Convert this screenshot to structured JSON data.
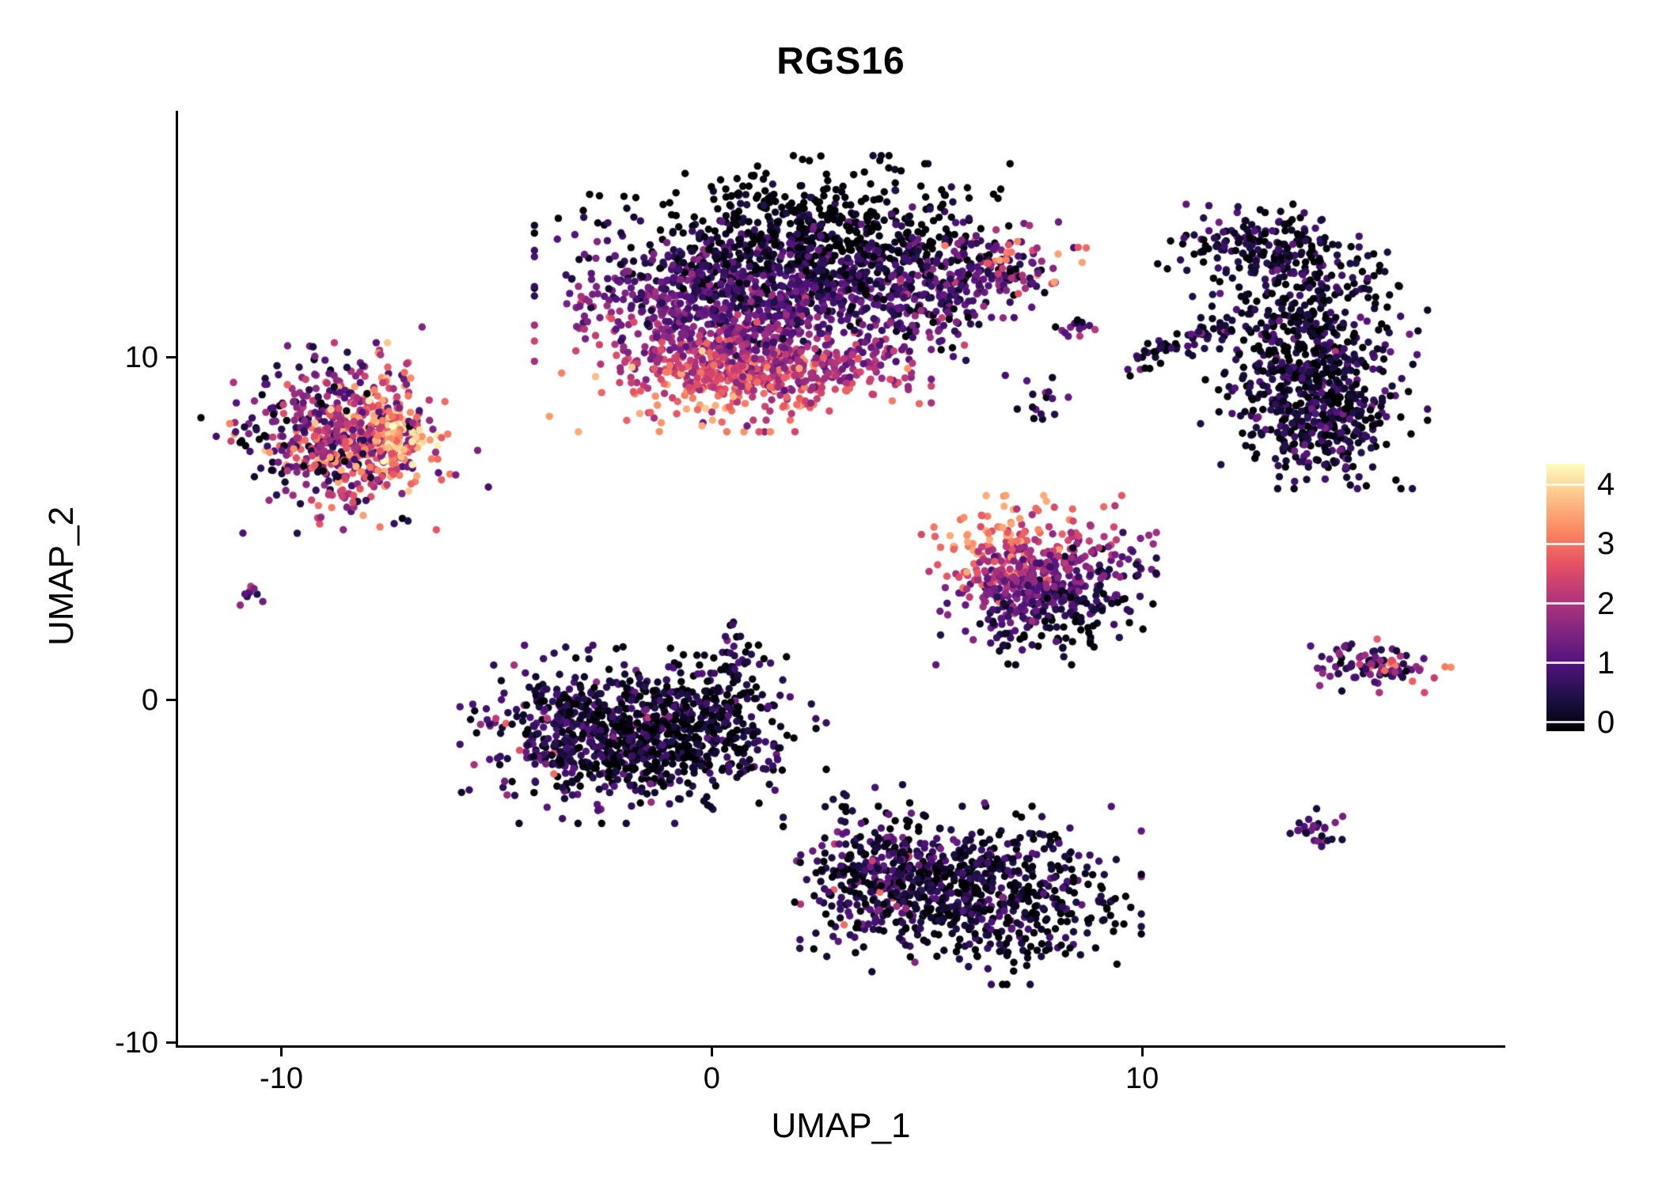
{
  "title": "RGS16",
  "colors": {
    "background": "#ffffff",
    "axis": "#000000",
    "text": "#000000"
  },
  "chart_data": {
    "type": "scatter",
    "subtype": "umap-feature-plot",
    "title": "RGS16",
    "xlabel": "UMAP_1",
    "ylabel": "UMAP_2",
    "xlim": [
      -12.4,
      18.4
    ],
    "ylim": [
      -10.1,
      17.2
    ],
    "grid": false,
    "seed": 1234,
    "point_radius_px": 4.7,
    "x_ticks": [
      {
        "value": -10,
        "label": "-10"
      },
      {
        "value": 0,
        "label": "0"
      },
      {
        "value": 10,
        "label": "10"
      }
    ],
    "y_ticks": [
      {
        "value": 10,
        "label": "10"
      },
      {
        "value": 0,
        "label": "0"
      },
      {
        "value": -10,
        "label": "-10"
      }
    ],
    "colormap": {
      "name": "magma",
      "value_range": [
        0,
        4.35
      ],
      "stops": [
        [
          0,
          "#000004"
        ],
        [
          0.125,
          "#1d1147"
        ],
        [
          0.25,
          "#51127c"
        ],
        [
          0.375,
          "#822681"
        ],
        [
          0.5,
          "#b63679"
        ],
        [
          0.625,
          "#e65164"
        ],
        [
          0.75,
          "#fb8861"
        ],
        [
          0.875,
          "#fec287"
        ],
        [
          1,
          "#fcfdbf"
        ]
      ]
    },
    "colorbar": {
      "position": "right",
      "domain": [
        -0.15,
        4.35
      ],
      "ticks": [
        {
          "value": 4,
          "label": "4"
        },
        {
          "value": 3,
          "label": "3"
        },
        {
          "value": 2,
          "label": "2"
        },
        {
          "value": 1,
          "label": "1"
        },
        {
          "value": 0,
          "label": "0"
        }
      ]
    },
    "clusters": [
      {
        "name": "main-body-upper-left",
        "center": [
          0.3,
          11.6
        ],
        "spread": [
          1.7,
          1.45
        ],
        "count": 1000,
        "value": {
          "base": 1.05,
          "gx": -0.12,
          "gy": -0.5,
          "noise": 0.55,
          "min": 0,
          "max": 3.6
        }
      },
      {
        "name": "main-body-upper-right",
        "center": [
          2.9,
          12.9
        ],
        "spread": [
          1.55,
          1.15
        ],
        "count": 800,
        "value": {
          "base": 0.55,
          "gx": -0.05,
          "gy": -0.35,
          "noise": 0.5,
          "min": 0,
          "max": 3.0
        }
      },
      {
        "name": "main-body-bright-rim",
        "center": [
          1.2,
          9.6
        ],
        "spread": [
          1.5,
          0.55
        ],
        "count": 450,
        "value": {
          "base": 2.4,
          "gx": -0.1,
          "gy": -0.4,
          "noise": 0.6,
          "min": 0.2,
          "max": 3.9
        }
      },
      {
        "name": "main-arm-inner",
        "center": [
          5.0,
          11.7
        ],
        "spread": [
          0.85,
          0.7
        ],
        "count": 150,
        "value": {
          "base": 0.9,
          "gx": 0,
          "gy": 0,
          "noise": 0.8,
          "min": 0,
          "max": 3.2
        }
      },
      {
        "name": "main-arm-tip",
        "center": [
          6.6,
          12.7
        ],
        "spread": [
          0.85,
          0.55
        ],
        "count": 130,
        "value": {
          "base": 1.5,
          "gx": 0.3,
          "gy": 0.4,
          "noise": 0.9,
          "min": 0,
          "max": 3.5
        }
      },
      {
        "name": "left-cluster",
        "center": [
          -8.6,
          7.7
        ],
        "spread": [
          1.0,
          1.05
        ],
        "count": 520,
        "value": {
          "base": 2.1,
          "gx": 0.35,
          "gy": 0,
          "noise": 0.9,
          "min": 0,
          "max": 4.2
        }
      },
      {
        "name": "left-cluster-hotspot",
        "center": [
          -7.4,
          7.6
        ],
        "spread": [
          0.45,
          0.5
        ],
        "count": 120,
        "value": {
          "base": 3.5,
          "gx": 0.3,
          "gy": 0,
          "noise": 0.5,
          "min": 2.4,
          "max": 4.35
        }
      },
      {
        "name": "left-cluster-dark-rim",
        "center": [
          -8.7,
          7.7
        ],
        "spread": [
          1.35,
          1.3
        ],
        "count": 90,
        "value": {
          "base": 0.8,
          "gx": 0.2,
          "gy": 0,
          "noise": 0.5,
          "min": 0,
          "max": 1.6
        }
      },
      {
        "name": "left-tiny-dot",
        "center": [
          -10.75,
          3.0
        ],
        "spread": [
          0.13,
          0.18
        ],
        "count": 9,
        "value": {
          "base": 1.4,
          "gx": 0,
          "gy": 0,
          "noise": 0.5,
          "min": 0.4,
          "max": 2.2
        }
      },
      {
        "name": "center-left-main",
        "center": [
          -2.6,
          -1.0
        ],
        "spread": [
          1.25,
          1.0
        ],
        "count": 650,
        "value": {
          "base": 0.45,
          "gx": -0.1,
          "gy": 0,
          "noise": 0.55,
          "min": 0,
          "max": 3.2
        },
        "hot": {
          "count": 7,
          "center": [
            -3.3,
            -1.0
          ],
          "spread": [
            0.7,
            0.7
          ],
          "min": 2.2,
          "max": 3.0
        }
      },
      {
        "name": "center-left-east",
        "center": [
          -0.2,
          -0.9
        ],
        "spread": [
          1.1,
          0.85
        ],
        "count": 350,
        "value": {
          "base": 0.35,
          "gx": 0,
          "gy": 0,
          "noise": 0.45,
          "min": 0,
          "max": 2.2
        }
      },
      {
        "name": "center-left-north-tip",
        "center": [
          0.55,
          1.1
        ],
        "spread": [
          0.3,
          0.55
        ],
        "count": 40,
        "value": {
          "base": 0.5,
          "gx": 0,
          "gy": 0,
          "noise": 0.5,
          "min": 0,
          "max": 2.0
        }
      },
      {
        "name": "mid-right-cluster",
        "center": [
          7.6,
          3.5
        ],
        "spread": [
          1.05,
          0.95
        ],
        "count": 620,
        "value": {
          "base": 1.5,
          "gx": -0.35,
          "gy": 0.75,
          "noise": 0.6,
          "min": 0,
          "max": 3.6
        }
      },
      {
        "name": "bottom-center-west",
        "center": [
          4.0,
          -5.2
        ],
        "spread": [
          0.9,
          1.05
        ],
        "count": 350,
        "value": {
          "base": 0.5,
          "gx": 0,
          "gy": 0,
          "noise": 0.6,
          "min": 0,
          "max": 3.2
        },
        "hot": {
          "count": 8,
          "center": [
            3.4,
            -5.4
          ],
          "spread": [
            0.8,
            0.9
          ],
          "min": 2.1,
          "max": 3.0
        }
      },
      {
        "name": "bottom-center-east",
        "center": [
          6.6,
          -5.7
        ],
        "spread": [
          1.3,
          1.0
        ],
        "count": 550,
        "value": {
          "base": 0.35,
          "gx": 0,
          "gy": 0,
          "noise": 0.5,
          "min": 0,
          "max": 2.6
        }
      },
      {
        "name": "right-large-main",
        "center": [
          13.9,
          10.2
        ],
        "spread": [
          1.05,
          1.55
        ],
        "count": 600,
        "value": {
          "base": 0.35,
          "gx": 0,
          "gy": 0,
          "noise": 0.5,
          "min": 0,
          "max": 2.4
        }
      },
      {
        "name": "right-large-top",
        "center": [
          12.7,
          13.2
        ],
        "spread": [
          0.9,
          0.55
        ],
        "count": 180,
        "value": {
          "base": 0.4,
          "gx": 0,
          "gy": 0,
          "noise": 0.5,
          "min": 0,
          "max": 2.2
        }
      },
      {
        "name": "right-large-bottom",
        "center": [
          14.3,
          7.9
        ],
        "spread": [
          0.75,
          0.7
        ],
        "count": 170,
        "value": {
          "base": 0.5,
          "gx": 0,
          "gy": 0,
          "noise": 0.55,
          "min": 0,
          "max": 2.6
        }
      },
      {
        "name": "small-isolated-a",
        "center": [
          8.45,
          10.8
        ],
        "spread": [
          0.22,
          0.18
        ],
        "count": 14,
        "value": {
          "base": 0.9,
          "gx": 0,
          "gy": 0,
          "noise": 0.7,
          "min": 0,
          "max": 2.2
        }
      },
      {
        "name": "small-isolated-b",
        "center": [
          7.6,
          8.9
        ],
        "spread": [
          0.3,
          0.35
        ],
        "count": 16,
        "value": {
          "base": 0.6,
          "gx": 0,
          "gy": 0,
          "noise": 0.6,
          "min": 0,
          "max": 2.0
        }
      },
      {
        "name": "thin-diagonal-strip",
        "shape": "line",
        "center": [
          9.7,
          9.8
        ],
        "end": [
          11.9,
          11.0
        ],
        "spread": [
          0.16,
          0.16
        ],
        "count": 60,
        "value": {
          "base": 0.4,
          "gx": 0,
          "gy": 0,
          "noise": 0.45,
          "min": 0,
          "max": 1.9
        }
      },
      {
        "name": "right-small-cluster",
        "center": [
          15.3,
          1.0
        ],
        "spread": [
          0.72,
          0.3
        ],
        "count": 90,
        "value": {
          "base": 1.3,
          "gx": 0.4,
          "gy": 0,
          "noise": 0.7,
          "min": 0.1,
          "max": 3.3
        },
        "hot": {
          "count": 10,
          "center": [
            15.7,
            1.05
          ],
          "spread": [
            0.25,
            0.15
          ],
          "min": 2.5,
          "max": 3.4
        }
      },
      {
        "name": "bottom-right-tiny",
        "center": [
          14.05,
          -3.85
        ],
        "spread": [
          0.27,
          0.3
        ],
        "count": 26,
        "value": {
          "base": 1.0,
          "gx": 0,
          "gy": 0,
          "noise": 0.6,
          "min": 0.1,
          "max": 2.3
        }
      }
    ]
  }
}
